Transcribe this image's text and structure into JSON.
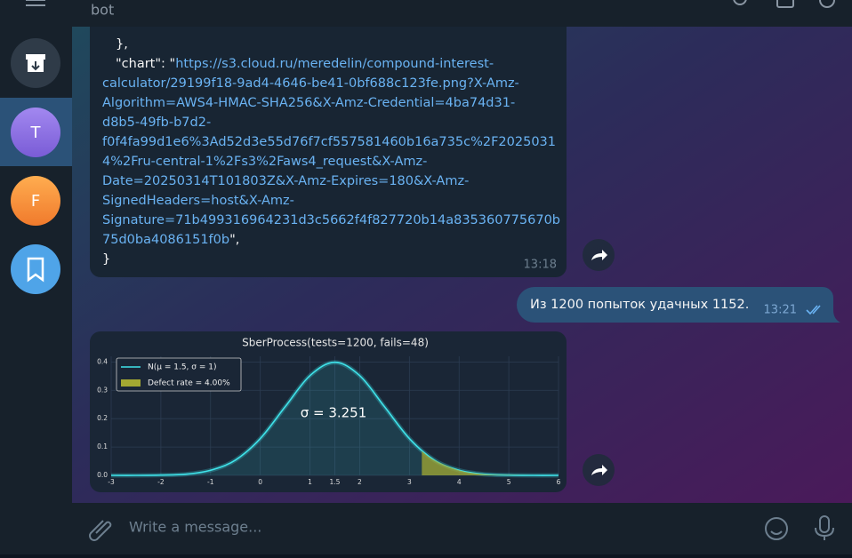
{
  "header": {
    "title": "bot"
  },
  "chats": [
    {
      "avatar": "T"
    },
    {
      "avatar": "F"
    }
  ],
  "messages": [
    {
      "lines_before": [
        "},"
      ],
      "key": "\"chart\": \"",
      "link": [
        "https://s3.cloud.ru/meredelin/compound-interest-",
        "calculator/29199f18-9ad4-4646-be41-0bf688c123fe.png?X-Amz-",
        "Algorithm=AWS4-HMAC-SHA256&X-Amz-Credential=4ba74d31-",
        "d8b5-49fb-b7d2-",
        "f0f4fa99d1e6%3Ad52d3e55d76f7cf557581460b16a735c%2F2025031",
        "4%2Fru-central-1%2Fs3%2Faws4_request&X-Amz-",
        "Date=20250314T101803Z&X-Amz-Expires=180&X-Amz-",
        "SignedHeaders=host&X-Amz-",
        "Signature=71b499316964231d3c5662f4f827720b14a835360775670b",
        "75d0ba4086151f0b"
      ],
      "after": "\",",
      "closing": "}",
      "time": "13:18"
    },
    {
      "text": "Из 1200 попыток удачных 1152.",
      "time": "13:21"
    },
    {
      "chart": {
        "type": "line",
        "title": "SberProcess(tests=1200, fails=48)",
        "annotation": "σ = 3.251",
        "legend": "upper left",
        "grid": true,
        "xlim": [
          -3,
          6
        ],
        "ylim": [
          0,
          0.42
        ],
        "xticks": [
          -3,
          -2,
          -1,
          0,
          1,
          1.5,
          2,
          3,
          4,
          5,
          6
        ],
        "yticks": [
          {
            "value": 0,
            "label": "0.0"
          },
          0.1,
          0.2,
          0.3,
          0.4
        ],
        "series": [
          {
            "name": "N(μ = 1.5, σ = 1)",
            "color": "#3fe3ea",
            "x": [
              -3,
              -2.5,
              -2,
              -1.5,
              -1,
              -0.5,
              0,
              0.5,
              1,
              1.5,
              2,
              2.5,
              3,
              3.5,
              4,
              4.5,
              5,
              5.5,
              6
            ],
            "values": [
              0,
              0,
              0.001,
              0.004,
              0.018,
              0.054,
              0.13,
              0.242,
              0.352,
              0.399,
              0.352,
              0.242,
              0.13,
              0.054,
              0.018,
              0.004,
              0.001,
              0,
              0
            ]
          },
          {
            "name": "Defect rate = 4.00%",
            "color": "#a3a832",
            "x": [
              3.25,
              3.5,
              4,
              4.5,
              5,
              5.5,
              6
            ],
            "values": [
              0.086,
              0.054,
              0.018,
              0.004,
              0.001,
              0,
              0
            ]
          }
        ]
      }
    }
  ],
  "composer": {
    "placeholder": "Write a message..."
  }
}
